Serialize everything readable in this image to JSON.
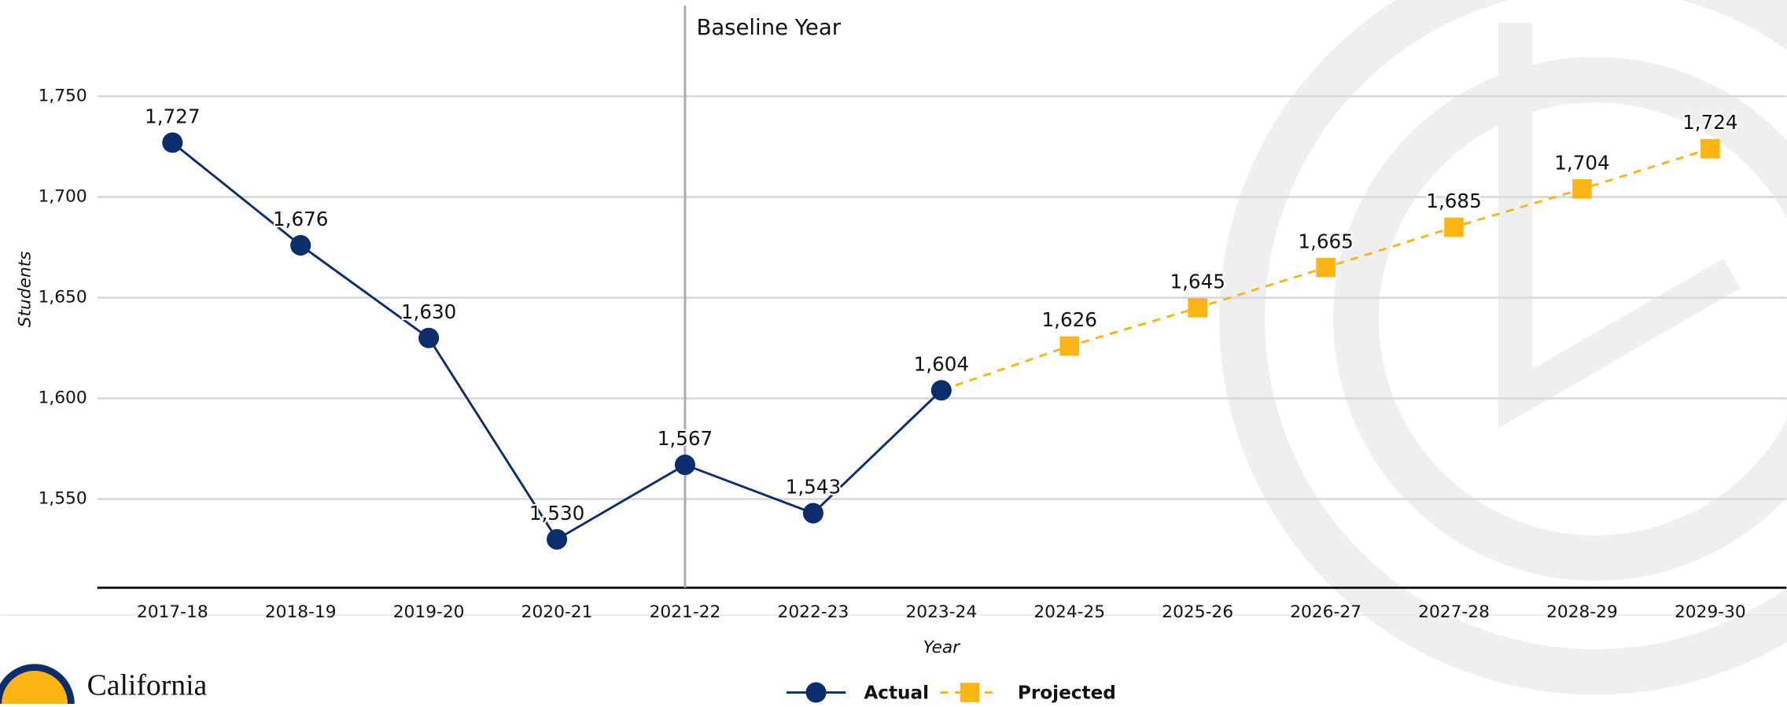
{
  "chart_data": {
    "type": "line",
    "categories": [
      "2017-18",
      "2018-19",
      "2019-20",
      "2020-21",
      "2021-22",
      "2022-23",
      "2023-24",
      "2024-25",
      "2025-26",
      "2026-27",
      "2027-28",
      "2028-29",
      "2029-30"
    ],
    "series": [
      {
        "name": "Actual",
        "color": "#0b2d6b",
        "marker": "circle",
        "dashed": false,
        "values": [
          1727,
          1676,
          1630,
          1530,
          1567,
          1543,
          1604,
          null,
          null,
          null,
          null,
          null,
          null
        ],
        "value_labels": [
          "1,727",
          "1,676",
          "1,630",
          "1,530",
          "1,567",
          "1,543",
          "1,604",
          null,
          null,
          null,
          null,
          null,
          null
        ]
      },
      {
        "name": "Projected",
        "color": "#fdb515",
        "marker": "square",
        "dashed": true,
        "values": [
          null,
          null,
          null,
          null,
          null,
          null,
          1604,
          1626,
          1645,
          1665,
          1685,
          1704,
          1724
        ],
        "value_labels": [
          null,
          null,
          null,
          null,
          null,
          null,
          null,
          "1,626",
          "1,645",
          "1,665",
          "1,685",
          "1,704",
          "1,724"
        ]
      }
    ],
    "ylim": [
      1506,
      1795
    ],
    "yticks": [
      {
        "value": 1550,
        "label": "1,550"
      },
      {
        "value": 1600,
        "label": "1,600"
      },
      {
        "value": 1650,
        "label": "1,650"
      },
      {
        "value": 1700,
        "label": "1,700"
      },
      {
        "value": 1750,
        "label": "1,750"
      }
    ],
    "grid": true,
    "y_label": "Students",
    "x_label": "Year",
    "annotation": {
      "text": "Baseline Year",
      "x": "2021-22"
    },
    "logo_text": "California"
  }
}
